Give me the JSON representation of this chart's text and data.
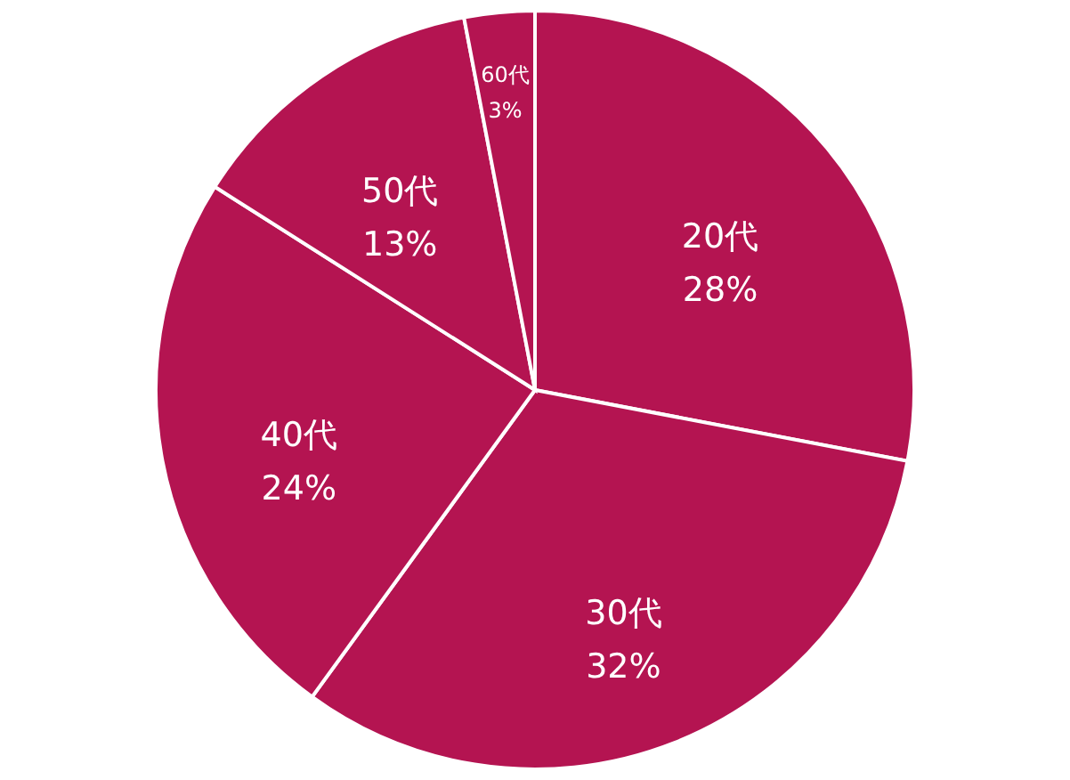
{
  "chart_data": {
    "type": "pie",
    "categories": [
      "20代",
      "30代",
      "40代",
      "50代",
      "60代"
    ],
    "values": [
      28,
      32,
      24,
      13,
      3
    ],
    "value_labels": [
      "28%",
      "32%",
      "24%",
      "13%",
      "3%"
    ],
    "colors": [
      "#b41451",
      "#b41451",
      "#b41451",
      "#b41451",
      "#b41451"
    ]
  }
}
